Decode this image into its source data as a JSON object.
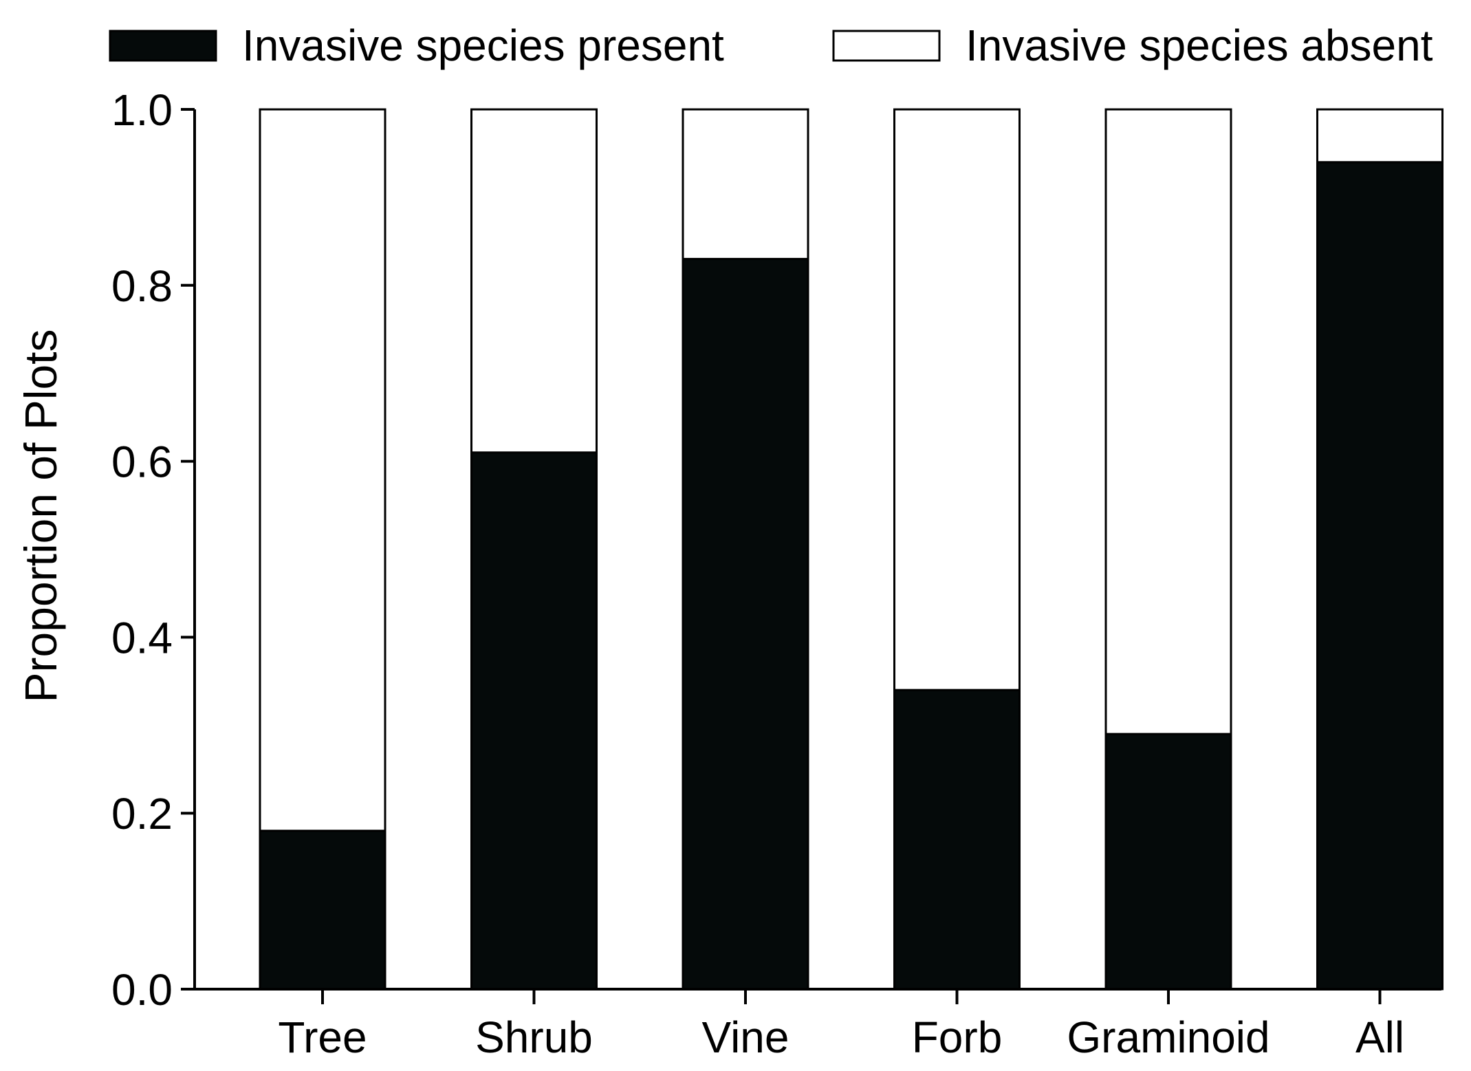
{
  "chart_data": {
    "type": "bar",
    "stacked": true,
    "title": "",
    "xlabel": "",
    "ylabel": "Proportion of Plots",
    "ylim": [
      0,
      1.0
    ],
    "yticks": [
      "0.0",
      "0.2",
      "0.4",
      "0.6",
      "0.8",
      "1.0"
    ],
    "ytick_values": [
      0,
      0.2,
      0.4,
      0.6,
      0.8,
      1.0
    ],
    "grid": false,
    "legend_position": "top",
    "categories": [
      "Tree",
      "Shrub",
      "Vine",
      "Forb",
      "Graminoid",
      "All"
    ],
    "series": [
      {
        "name": "Invasive species present",
        "color": "#050a0a",
        "values": [
          0.18,
          0.61,
          0.83,
          0.34,
          0.29,
          0.94
        ]
      },
      {
        "name": "Invasive species absent",
        "color": "#ffffff",
        "values": [
          0.82,
          0.39,
          0.17,
          0.66,
          0.71,
          0.06
        ]
      }
    ]
  }
}
